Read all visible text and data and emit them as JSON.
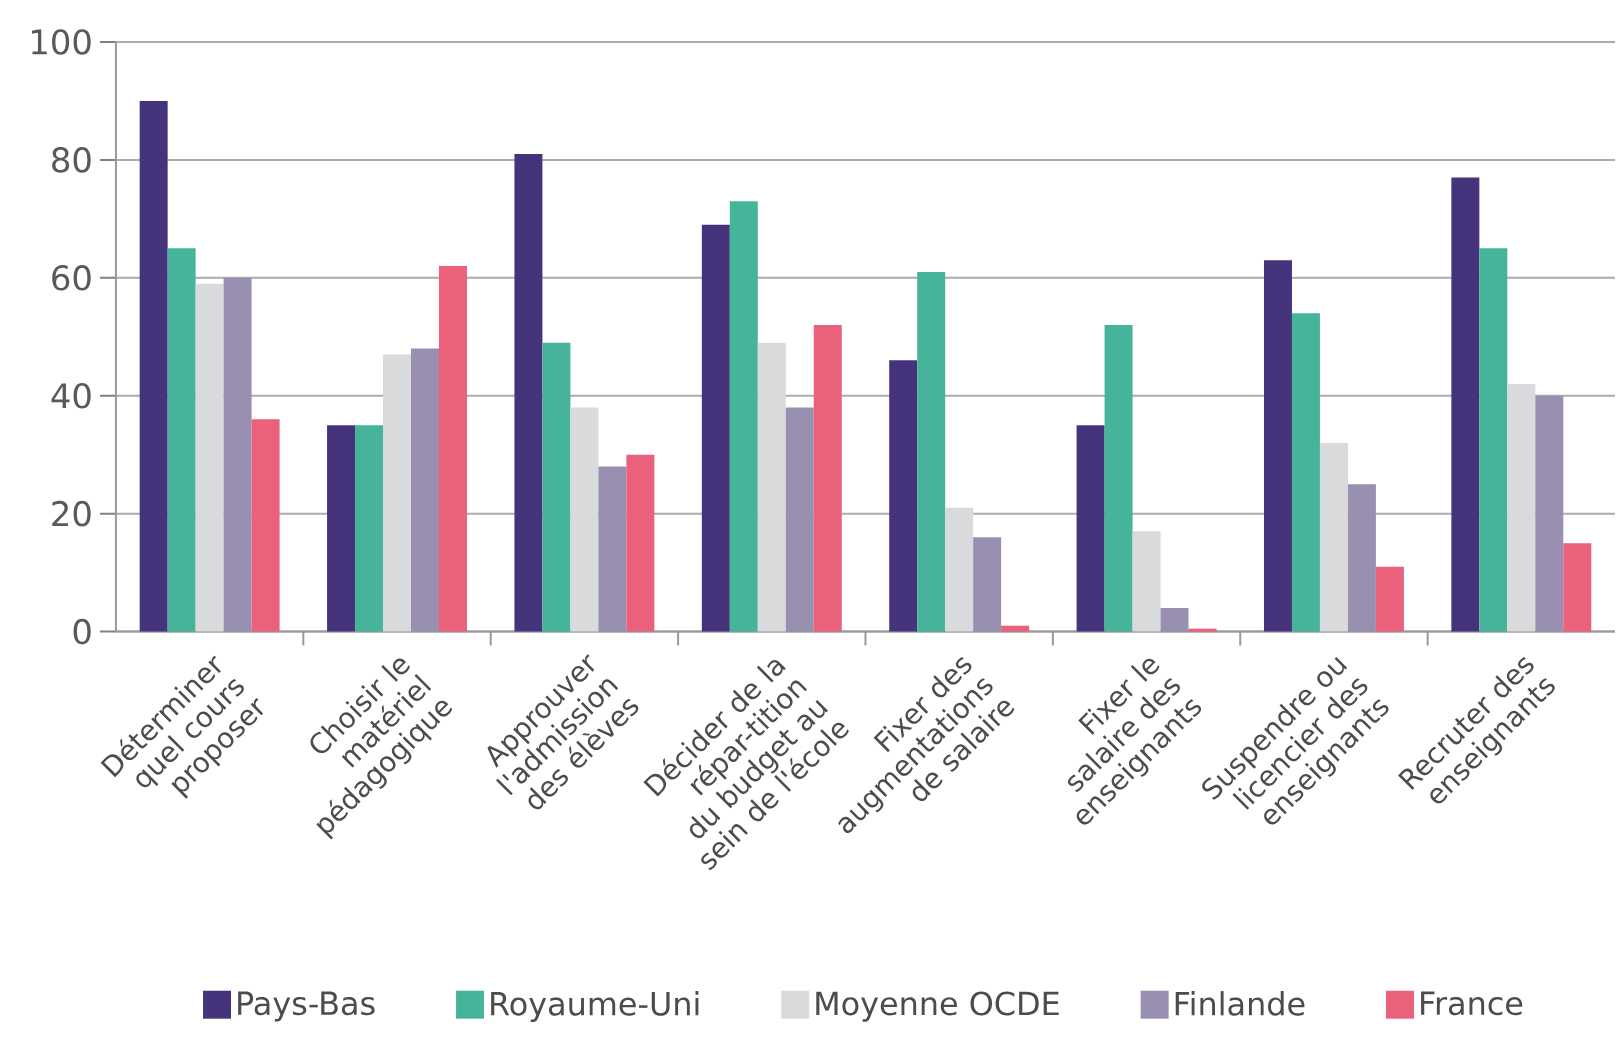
{
  "chart_data": {
    "type": "bar",
    "categories": [
      "Déterminer quel cours proposer",
      "Choisir le matériel pédagogique",
      "Approuver l'admission des élèves",
      "Décider de la répar-tition du budget au sein de l'école",
      "Fixer des augmentations de salaire",
      "Fixer le salaire des enseignants",
      "Suspendre ou licencier des enseignants",
      "Recruter des enseignants"
    ],
    "series": [
      {
        "name": "Pays-Bas",
        "color": "#45347c",
        "values": [
          90,
          35,
          81,
          69,
          46,
          35,
          63,
          77
        ]
      },
      {
        "name": "Royaume-Uni",
        "color": "#46b49a",
        "values": [
          65,
          35,
          49,
          73,
          61,
          52,
          54,
          65
        ]
      },
      {
        "name": "Moyenne OCDE",
        "color": "#d9dadc",
        "values": [
          59,
          47,
          38,
          49,
          21,
          17,
          32,
          42
        ]
      },
      {
        "name": "Finlande",
        "color": "#998fb0",
        "values": [
          60,
          48,
          28,
          38,
          16,
          4,
          25,
          40
        ]
      },
      {
        "name": "France",
        "color": "#e9617b",
        "values": [
          36,
          62,
          30,
          52,
          1,
          0.5,
          11,
          15
        ]
      }
    ],
    "ylim": [
      0,
      100
    ],
    "yticks": [
      0,
      20,
      40,
      60,
      80,
      100
    ],
    "grid": "y",
    "legend": "bottom"
  }
}
